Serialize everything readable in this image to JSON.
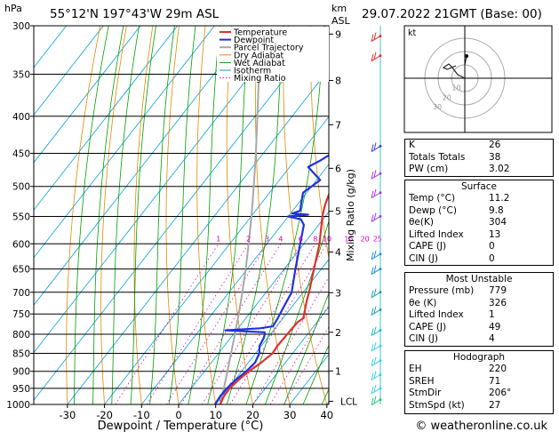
{
  "header": {
    "pressure_unit": "hPa",
    "location": "55°12'N  197°43'W  29m  ASL",
    "km_label": "km",
    "asl_label": "ASL",
    "datetime": "29.07.2022  21GMT  (Base: 00)"
  },
  "chart_data": {
    "type": "skew-t",
    "xlabel": "Dewpoint / Temperature (°C)",
    "ylabel_right": "Mixing Ratio (g/kg)",
    "x_ticks": [
      "-30",
      "-20",
      "-10",
      "0",
      "10",
      "20",
      "30",
      "40"
    ],
    "x_range": [
      -36,
      40
    ],
    "pressure_range": [
      1000,
      300
    ],
    "pressure_levels": [
      300,
      350,
      400,
      450,
      500,
      550,
      600,
      650,
      700,
      750,
      800,
      850,
      900,
      950,
      1000
    ],
    "pressure_labels": [
      "300",
      "350",
      "400",
      "450",
      "500",
      "550",
      "600",
      "650",
      "700",
      "750",
      "800",
      "850",
      "900",
      "950",
      "1000"
    ],
    "km_ticks": [
      {
        "km": 9,
        "p": 308
      },
      {
        "km": 8,
        "p": 357
      },
      {
        "km": 7,
        "p": 411
      },
      {
        "km": 6,
        "p": 472
      },
      {
        "km": 5,
        "p": 541
      },
      {
        "km": 4,
        "p": 616
      },
      {
        "km": 3,
        "p": 701
      },
      {
        "km": 2,
        "p": 795
      },
      {
        "km": 1,
        "p": 899
      }
    ],
    "km_labels": [
      "9",
      "8",
      "7",
      "6",
      "5",
      "4",
      "3",
      "2",
      "1"
    ],
    "lcl_label": "LCL",
    "lcl_pressure": 990,
    "mixing_ratios": [
      1,
      2,
      3,
      4,
      6,
      8,
      10,
      15,
      20,
      25
    ],
    "mixing_ratio_labels": [
      "1",
      "2",
      "3",
      "4",
      "6",
      "8",
      "10",
      "15",
      "20",
      "25"
    ],
    "legend": [
      "Temperature",
      "Dewpoint",
      "Parcel Trajectory",
      "Dry Adiabat",
      "Wet Adiabat",
      "Isotherm",
      "Mixing Ratio"
    ],
    "series": [
      {
        "name": "Temperature",
        "color": "#e03030",
        "points": [
          [
            1000,
            11.2
          ],
          [
            975,
            10.5
          ],
          [
            950,
            10.4
          ],
          [
            925,
            11.0
          ],
          [
            900,
            12.0
          ],
          [
            875,
            13.5
          ],
          [
            850,
            14.6
          ],
          [
            830,
            14.3
          ],
          [
            810,
            14.5
          ],
          [
            790,
            14.6
          ],
          [
            770,
            14.8
          ],
          [
            760,
            15.5
          ],
          [
            745,
            14.5
          ],
          [
            720,
            12.8
          ],
          [
            700,
            11.6
          ],
          [
            650,
            8.0
          ],
          [
            600,
            4.2
          ],
          [
            550,
            -0.8
          ],
          [
            530,
            -2.5
          ],
          [
            500,
            -4.5
          ],
          [
            450,
            -9.5
          ],
          [
            400,
            -15.5
          ],
          [
            375,
            -19.5
          ],
          [
            350,
            -23.5
          ],
          [
            300,
            -33.5
          ]
        ]
      },
      {
        "name": "Dewpoint",
        "color": "#2030e0",
        "points": [
          [
            1000,
            9.8
          ],
          [
            975,
            9.5
          ],
          [
            950,
            9.6
          ],
          [
            925,
            10.2
          ],
          [
            900,
            11.3
          ],
          [
            875,
            11.8
          ],
          [
            850,
            11.0
          ],
          [
            830,
            9.5
          ],
          [
            810,
            9.0
          ],
          [
            800,
            8.5
          ],
          [
            795,
            8.0
          ],
          [
            790,
            -3.0
          ],
          [
            785,
            6.0
          ],
          [
            780,
            9.0
          ],
          [
            760,
            8.6
          ],
          [
            740,
            8.0
          ],
          [
            700,
            6.9
          ],
          [
            650,
            3.0
          ],
          [
            600,
            -1.0
          ],
          [
            565,
            -4.0
          ],
          [
            555,
            -6.0
          ],
          [
            550,
            -10.0
          ],
          [
            547,
            -5.0
          ],
          [
            545,
            -9.5
          ],
          [
            540,
            -8.0
          ],
          [
            530,
            -9.0
          ],
          [
            510,
            -11.0
          ],
          [
            490,
            -9.0
          ],
          [
            470,
            -15.0
          ],
          [
            460,
            -13.0
          ],
          [
            450,
            -11.5
          ],
          [
            440,
            -12.5
          ],
          [
            425,
            -13.0
          ],
          [
            410,
            -12.0
          ],
          [
            400,
            -11.5
          ],
          [
            380,
            -13.0
          ],
          [
            365,
            -21.0
          ],
          [
            355,
            -22.5
          ],
          [
            350,
            -24.0
          ],
          [
            340,
            -30.0
          ],
          [
            330,
            -29.0
          ],
          [
            320,
            -30.5
          ],
          [
            310,
            -29.0
          ],
          [
            300,
            -28.0
          ]
        ]
      },
      {
        "name": "Parcel Trajectory",
        "color": "#a8a8a8",
        "points": [
          [
            1000,
            11.2
          ],
          [
            975,
            10.0
          ],
          [
            950,
            8.8
          ],
          [
            900,
            6.2
          ],
          [
            850,
            3.4
          ],
          [
            800,
            0.4
          ],
          [
            750,
            -2.8
          ],
          [
            700,
            -6.4
          ],
          [
            650,
            -10.4
          ],
          [
            600,
            -14.9
          ],
          [
            550,
            -19.9
          ],
          [
            500,
            -25.6
          ],
          [
            450,
            -32.0
          ],
          [
            400,
            -39.4
          ],
          [
            350,
            -47.8
          ],
          [
            300,
            -57.5
          ]
        ]
      }
    ]
  },
  "hodograph": {
    "unit_label": "kt",
    "ring_labels": [
      "10",
      "20",
      "30"
    ]
  },
  "indices": [
    {
      "label": "K",
      "value": "26"
    },
    {
      "label": "Totals Totals",
      "value": "38"
    },
    {
      "label": "PW (cm)",
      "value": "3.02"
    }
  ],
  "surface": {
    "title": "Surface",
    "rows": [
      {
        "label": "Temp (°C)",
        "value": "11.2"
      },
      {
        "label": "Dewp (°C)",
        "value": "9.8"
      },
      {
        "label": "θe(K)",
        "value": "304"
      },
      {
        "label": "Lifted Index",
        "value": "13"
      },
      {
        "label": "CAPE (J)",
        "value": "0"
      },
      {
        "label": "CIN (J)",
        "value": "0"
      }
    ]
  },
  "most_unstable": {
    "title": "Most Unstable",
    "rows": [
      {
        "label": "Pressure (mb)",
        "value": "779"
      },
      {
        "label": "θe (K)",
        "value": "326"
      },
      {
        "label": "Lifted Index",
        "value": "1"
      },
      {
        "label": "CAPE (J)",
        "value": "49"
      },
      {
        "label": "CIN (J)",
        "value": "4"
      }
    ]
  },
  "hodograph_table": {
    "title": "Hodograph",
    "rows": [
      {
        "label": "EH",
        "value": "220"
      },
      {
        "label": "SREH",
        "value": "71"
      },
      {
        "label": "StmDir",
        "value": "206°"
      },
      {
        "label": "StmSpd (kt)",
        "value": "27"
      }
    ]
  },
  "footer": {
    "copyright": "© weatheronline.co.uk"
  },
  "colors": {
    "temperature": "#e03030",
    "dewpoint": "#2030e0",
    "parcel": "#a8a8a8",
    "dry_adiabat": "#e08a00",
    "wet_adiabat": "#00a000",
    "isotherm": "#00a0e0",
    "mixing_ratio": "#e000c0"
  }
}
